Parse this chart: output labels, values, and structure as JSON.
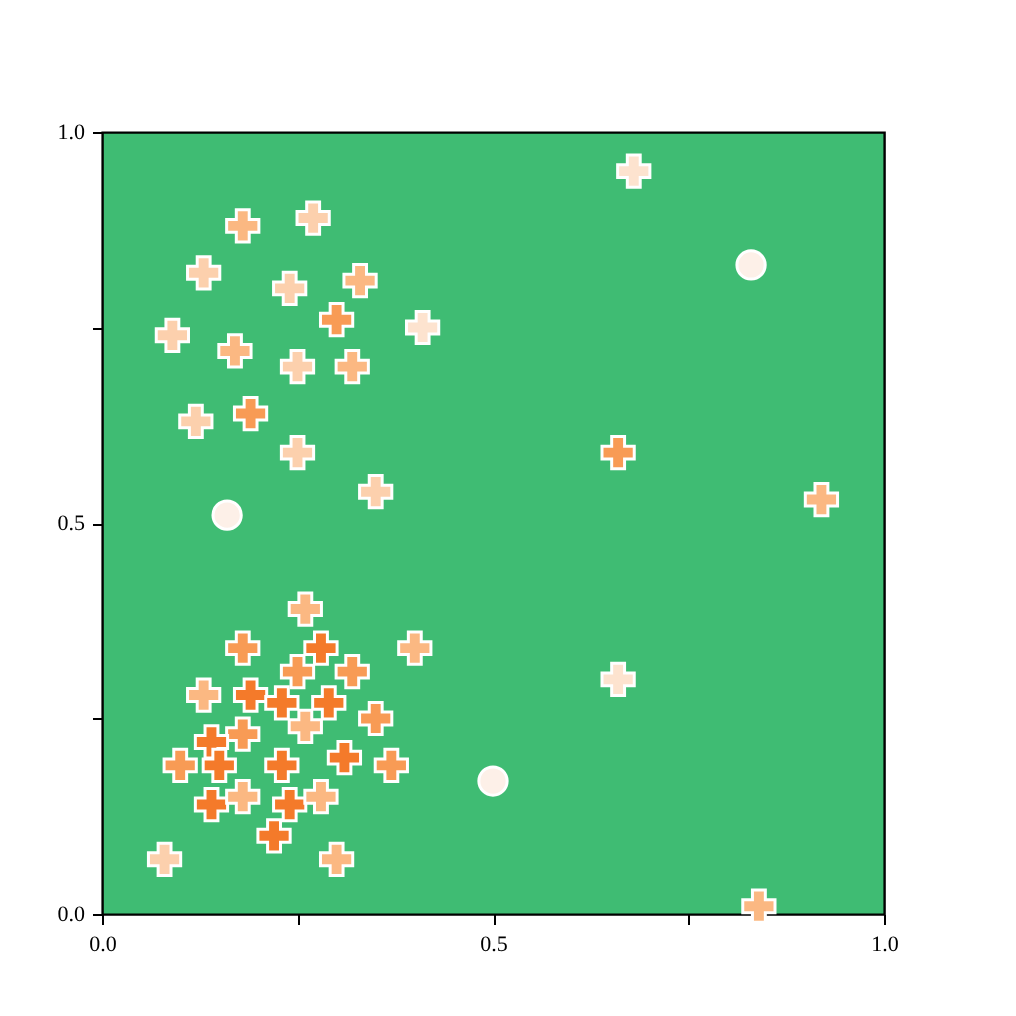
{
  "chart_data": {
    "type": "scatter",
    "xlim": [
      0,
      1
    ],
    "ylim": [
      0,
      1
    ],
    "xticks": [
      {
        "value": 0,
        "label": "0.0"
      },
      {
        "value": 0.25,
        "label": null
      },
      {
        "value": 0.5,
        "label": "0.5"
      },
      {
        "value": 0.75,
        "label": null
      },
      {
        "value": 1,
        "label": "1.0"
      }
    ],
    "yticks": [
      {
        "value": 0,
        "label": "0.0"
      },
      {
        "value": 0.25,
        "label": null
      },
      {
        "value": 0.5,
        "label": "0.5"
      },
      {
        "value": 0.75,
        "label": null
      },
      {
        "value": 1,
        "label": "1.0"
      }
    ],
    "grid": false,
    "series": [
      {
        "marker": "cross",
        "x": [
          0.26,
          0.18,
          0.28,
          0.25,
          0.32,
          0.4,
          0.13,
          0.19,
          0.23,
          0.29,
          0.35,
          0.26,
          0.18,
          0.14,
          0.1,
          0.15,
          0.23,
          0.31,
          0.37,
          0.14,
          0.18,
          0.24,
          0.28,
          0.22,
          0.3,
          0.08,
          0.18,
          0.27,
          0.13,
          0.24,
          0.33,
          0.3,
          0.41,
          0.09,
          0.17,
          0.25,
          0.32,
          0.12,
          0.19,
          0.25,
          0.35,
          0.68,
          0.66,
          0.92,
          0.66,
          0.84
        ],
        "values": [
          0.39,
          0.34,
          0.34,
          0.31,
          0.31,
          0.34,
          0.28,
          0.28,
          0.27,
          0.27,
          0.25,
          0.24,
          0.23,
          0.22,
          0.19,
          0.19,
          0.19,
          0.2,
          0.19,
          0.14,
          0.15,
          0.14,
          0.15,
          0.1,
          0.07,
          0.07,
          0.88,
          0.89,
          0.82,
          0.8,
          0.81,
          0.76,
          0.75,
          0.74,
          0.72,
          0.7,
          0.7,
          0.63,
          0.64,
          0.59,
          0.54,
          0.95,
          0.59,
          0.53,
          0.3,
          0.01
        ],
        "colors": [
          "#fbb882",
          "#f89b55",
          "#f47a2a",
          "#f89b55",
          "#f89b55",
          "#fbb882",
          "#fbb882",
          "#f47a2a",
          "#f47a2a",
          "#f47a2a",
          "#f89b55",
          "#fbb882",
          "#f89b55",
          "#f47a2a",
          "#f89b55",
          "#f47a2a",
          "#f47a2a",
          "#f47a2a",
          "#f89b55",
          "#f47a2a",
          "#fbb882",
          "#f47a2a",
          "#fbb882",
          "#f47a2a",
          "#fbb882",
          "#fcd0ad",
          "#fbb882",
          "#fcd0ad",
          "#fcd0ad",
          "#fcd0ad",
          "#fbb882",
          "#f89b55",
          "#fde3cf",
          "#fcd0ad",
          "#fbb882",
          "#fcd0ad",
          "#fbb882",
          "#fcd0ad",
          "#f89b55",
          "#fcd0ad",
          "#fcd0ad",
          "#fde3cf",
          "#f89b55",
          "#fbb882",
          "#fde3cf",
          "#fbb882"
        ]
      },
      {
        "marker": "circle",
        "x": [
          0.16,
          0.83,
          0.5
        ],
        "values": [
          0.51,
          0.83,
          0.17
        ],
        "colors": [
          "#fdf0e8",
          "#fdf0e8",
          "#fdf0e8"
        ]
      }
    ]
  }
}
